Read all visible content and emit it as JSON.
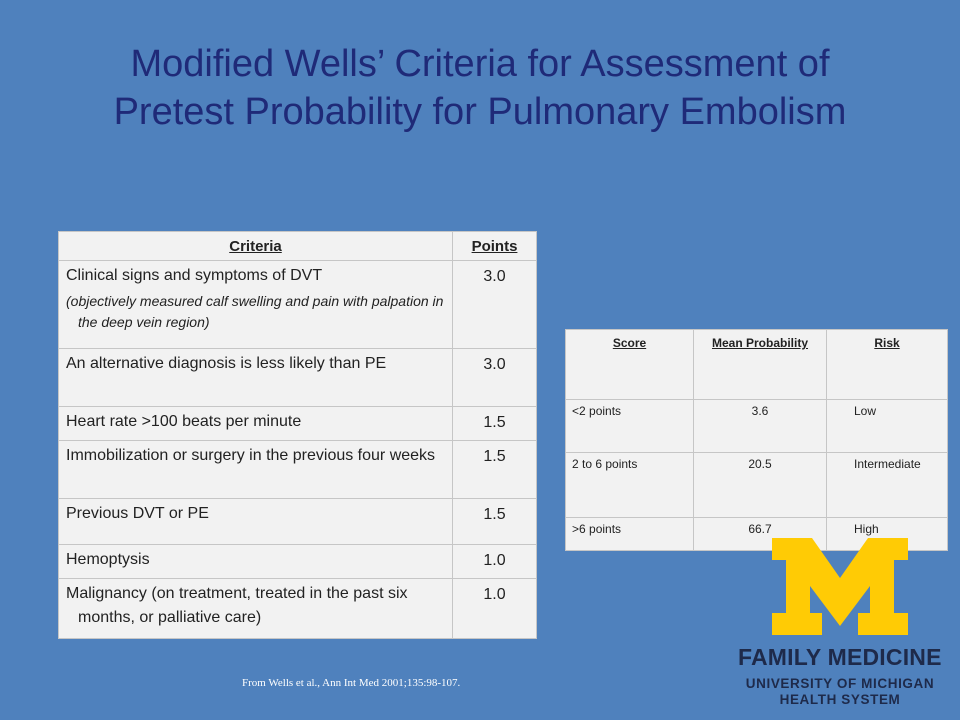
{
  "slide": {
    "title_line1": "Modified Wells’ Criteria for Assessment of",
    "title_line2": "Pretest  Probability for Pulmonary Embolism",
    "citation": "From Wells  et al., Ann Int Med 2001;135:98-107."
  },
  "criteria_table": {
    "headers": {
      "criteria": "Criteria",
      "points": "Points"
    },
    "rows": [
      {
        "criteria": "Clinical signs and symptoms of DVT",
        "note": "(objectively measured calf swelling and pain with palpation in the deep vein region)",
        "points": "3.0"
      },
      {
        "criteria": "An alternative diagnosis is less likely than PE",
        "points": "3.0"
      },
      {
        "criteria": "Heart rate >100 beats per minute",
        "points": "1.5"
      },
      {
        "criteria": "Immobilization or surgery in the previous four weeks",
        "points": "1.5"
      },
      {
        "criteria": "Previous DVT or PE",
        "points": "1.5"
      },
      {
        "criteria": "Hemoptysis",
        "points": "1.0"
      },
      {
        "criteria": "Malignancy (on treatment, treated in the past six months, or palliative care)",
        "points": "1.0"
      }
    ]
  },
  "score_table": {
    "headers": {
      "score": "Score",
      "mean_probability": "Mean Probability",
      "risk": "Risk"
    },
    "rows": [
      {
        "score": "<2 points",
        "probability": "3.6",
        "risk": "Low"
      },
      {
        "score": "2 to 6 points",
        "probability": "20.5",
        "risk": "Intermediate"
      },
      {
        "score": ">6 points",
        "probability": "66.7",
        "risk": "High"
      }
    ]
  },
  "logo": {
    "line1": "FAMILY MEDICINE",
    "line2a": "UNIVERSITY OF MICHIGAN",
    "line2b": "HEALTH SYSTEM",
    "m_color": "#ffcb05",
    "text_color": "#1e2a4a"
  },
  "colors": {
    "background": "#4f81bd",
    "title": "#1f2a78",
    "table_bg": "#f2f2f2"
  }
}
